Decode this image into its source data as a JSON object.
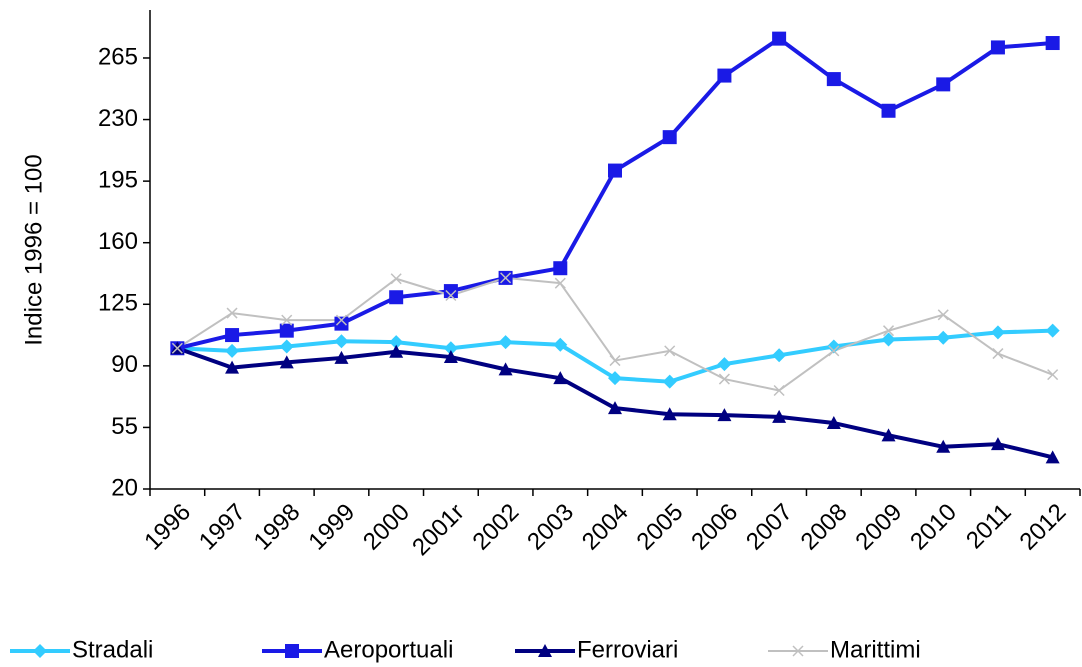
{
  "chart_data": {
    "type": "line",
    "y_label": "Indice 1996 = 100",
    "categories": [
      "1996",
      "1997",
      "1998",
      "1999",
      "2000",
      "2001r",
      "2002",
      "2003",
      "2004",
      "2005",
      "2006",
      "2007",
      "2008",
      "2009",
      "2010",
      "2011",
      "2012"
    ],
    "series": [
      {
        "name": "Stradali",
        "color": "#33ccff",
        "marker": "diamond",
        "values": [
          100,
          98.5,
          101,
          104,
          103.5,
          100,
          103.5,
          102,
          83,
          81,
          91,
          96,
          101,
          105,
          106,
          109,
          110
        ]
      },
      {
        "name": "Aeroportuali",
        "color": "#1a1ae6",
        "marker": "square",
        "values": [
          100,
          107.5,
          110,
          114,
          129,
          132.5,
          140,
          145.5,
          201,
          220,
          255,
          276,
          253,
          235,
          250,
          271,
          273.5
        ]
      },
      {
        "name": "Ferroviari",
        "color": "#000080",
        "marker": "triangle",
        "values": [
          100,
          89,
          92,
          94.5,
          98,
          95,
          88,
          83,
          66,
          62.5,
          62,
          61,
          57.5,
          50.5,
          44,
          45.5,
          38
        ]
      },
      {
        "name": "Marittimi",
        "color": "#c0c0c0",
        "marker": "x",
        "values": [
          100,
          120,
          116,
          116,
          139.5,
          130,
          140,
          137,
          93,
          98.5,
          82.5,
          76,
          98.5,
          110,
          119,
          97,
          85
        ]
      }
    ],
    "ylim": [
      20,
      290
    ],
    "yticks": [
      20,
      55,
      90,
      125,
      160,
      195,
      230,
      265
    ],
    "grid": false
  }
}
